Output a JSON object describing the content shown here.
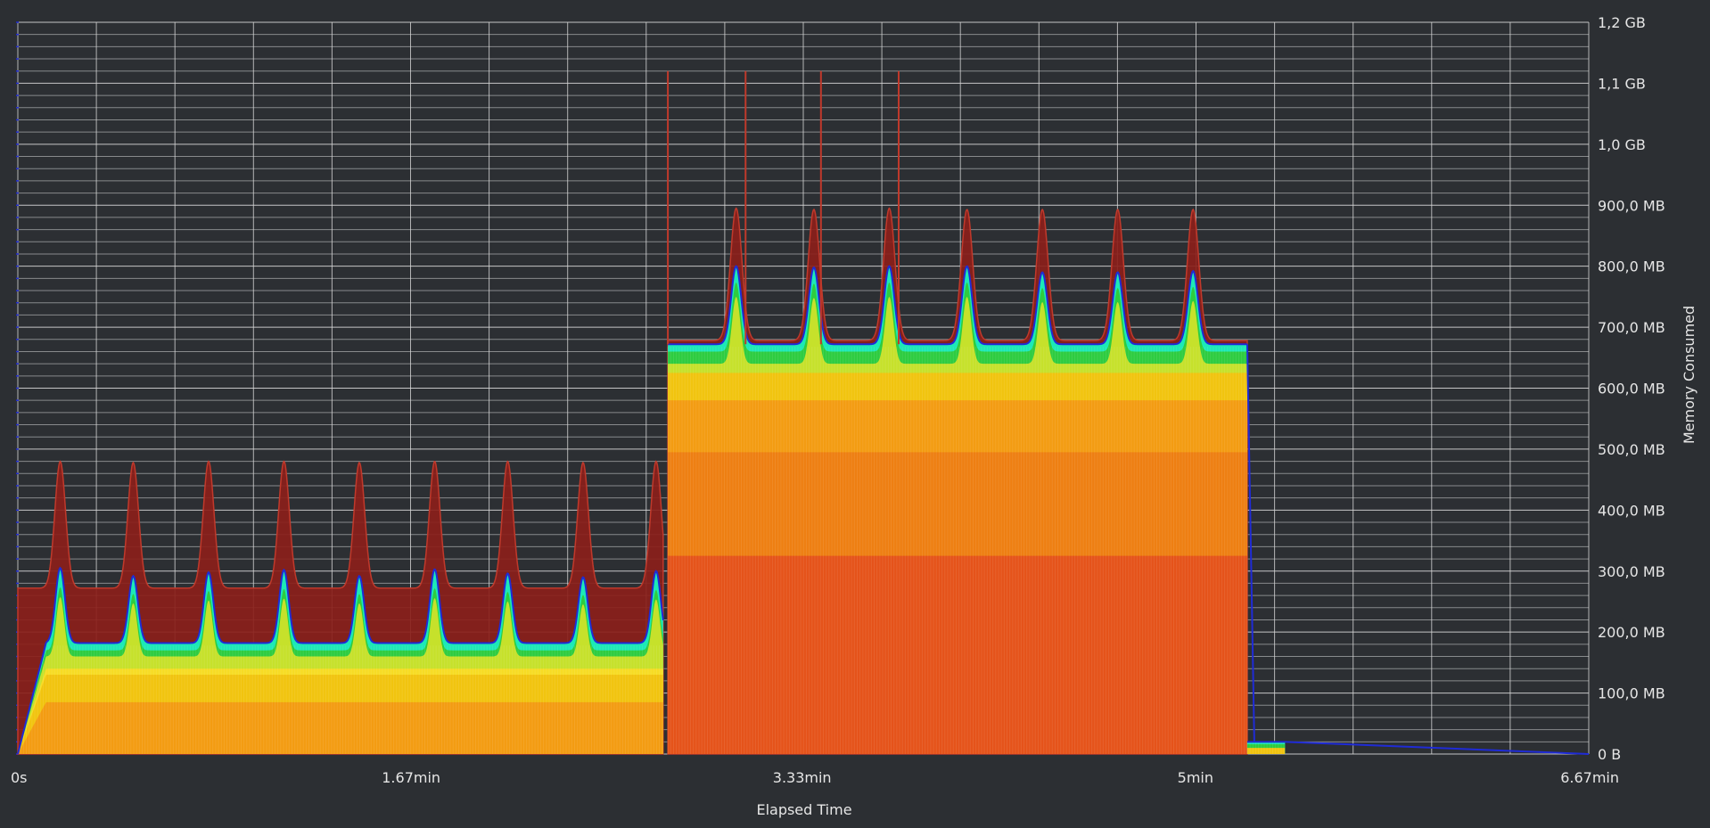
{
  "chart_data": {
    "type": "area",
    "xlabel": "Elapsed Time",
    "ylabel": "Memory Consumed",
    "xlim_min": [
      0,
      6.67
    ],
    "ylim_mb": [
      0,
      1200
    ],
    "x_ticks": [
      {
        "value": 0,
        "label": "0s"
      },
      {
        "value": 1.67,
        "label": "1.67min"
      },
      {
        "value": 3.33,
        "label": "3.33min"
      },
      {
        "value": 5,
        "label": "5min"
      },
      {
        "value": 6.67,
        "label": "6.67min"
      }
    ],
    "y_ticks": [
      {
        "value": 0,
        "label": "0 B"
      },
      {
        "value": 100,
        "label": "100,0 MB"
      },
      {
        "value": 200,
        "label": "200,0 MB"
      },
      {
        "value": 300,
        "label": "300,0 MB"
      },
      {
        "value": 400,
        "label": "400,0 MB"
      },
      {
        "value": 500,
        "label": "500,0 MB"
      },
      {
        "value": 600,
        "label": "600,0 MB"
      },
      {
        "value": 700,
        "label": "700,0 MB"
      },
      {
        "value": 800,
        "label": "800,0 MB"
      },
      {
        "value": 900,
        "label": "900,0 MB"
      },
      {
        "value": 1000,
        "label": "1,0 GB"
      },
      {
        "value": 1100,
        "label": "1,1 GB"
      },
      {
        "value": 1200,
        "label": "1,2 GB"
      }
    ],
    "grid": true,
    "colors": {
      "background": "#2c2f33",
      "grid": "#d6d6d6",
      "peak_envelope": "#8b1f1a",
      "peak_envelope_edge": "#c0392b",
      "heap_base": "#e5531a",
      "heap_mid": "#f39c12",
      "heap_upper": "#f1c40f",
      "heap_light": "#f7dc24",
      "heap_green": "#2ecc40",
      "heap_cyan": "#1de9b6",
      "total_line": "#1f2bd6",
      "spike_red": "#c0392b"
    },
    "phases": [
      {
        "x_start": 0,
        "x_end": 2.74,
        "ramp_end": 0.12,
        "baseline_mb": 182,
        "peak_envelope_mb": 272,
        "layers_mb": [
          {
            "top": 85,
            "color": "#f39c12"
          },
          {
            "top": 130,
            "color": "#f1c40f"
          },
          {
            "top": 140,
            "color": "#f7dc24"
          },
          {
            "top": 160,
            "color": "#c6e12b"
          },
          {
            "top": 170,
            "color": "#2ecc40"
          },
          {
            "top": 178,
            "color": "#1de9b6"
          }
        ],
        "spikes": [
          {
            "x": 0.18,
            "mb": 305,
            "envelope_mb": 480
          },
          {
            "x": 0.49,
            "mb": 292,
            "envelope_mb": 478
          },
          {
            "x": 0.81,
            "mb": 298,
            "envelope_mb": 480
          },
          {
            "x": 1.13,
            "mb": 302,
            "envelope_mb": 480
          },
          {
            "x": 1.45,
            "mb": 292,
            "envelope_mb": 478
          },
          {
            "x": 1.77,
            "mb": 303,
            "envelope_mb": 480
          },
          {
            "x": 2.08,
            "mb": 296,
            "envelope_mb": 480
          },
          {
            "x": 2.4,
            "mb": 290,
            "envelope_mb": 478
          },
          {
            "x": 2.71,
            "mb": 300,
            "envelope_mb": 480
          }
        ]
      },
      {
        "x_start": 2.76,
        "x_end": 5.22,
        "ramp_end": 2.76,
        "baseline_mb": 672,
        "peak_envelope_mb": 678,
        "layers_mb": [
          {
            "top": 325,
            "color": "#e5531a"
          },
          {
            "top": 495,
            "color": "#ee7f12"
          },
          {
            "top": 580,
            "color": "#f39c12"
          },
          {
            "top": 625,
            "color": "#f1c40f"
          },
          {
            "top": 640,
            "color": "#c6e12b"
          },
          {
            "top": 660,
            "color": "#2ecc40"
          },
          {
            "top": 668,
            "color": "#1de9b6"
          }
        ],
        "spikes": [
          {
            "x": 3.05,
            "mb": 800,
            "envelope_mb": 895
          },
          {
            "x": 3.38,
            "mb": 798,
            "envelope_mb": 893
          },
          {
            "x": 3.7,
            "mb": 800,
            "envelope_mb": 895
          },
          {
            "x": 4.03,
            "mb": 800,
            "envelope_mb": 893
          },
          {
            "x": 4.35,
            "mb": 790,
            "envelope_mb": 893
          },
          {
            "x": 4.67,
            "mb": 790,
            "envelope_mb": 893
          },
          {
            "x": 4.99,
            "mb": 792,
            "envelope_mb": 893
          }
        ],
        "tall_spikes": [
          {
            "x": 2.76,
            "mb": 1120
          },
          {
            "x": 3.09,
            "mb": 1120
          },
          {
            "x": 3.41,
            "mb": 1120
          },
          {
            "x": 3.74,
            "mb": 1120
          }
        ]
      },
      {
        "x_start": 5.22,
        "x_end": 5.38,
        "baseline_mb": 20,
        "layers_mb": [
          {
            "top": 10,
            "color": "#f1c40f"
          },
          {
            "top": 16,
            "color": "#2ecc40"
          },
          {
            "top": 20,
            "color": "#1de9b6"
          }
        ]
      }
    ]
  }
}
